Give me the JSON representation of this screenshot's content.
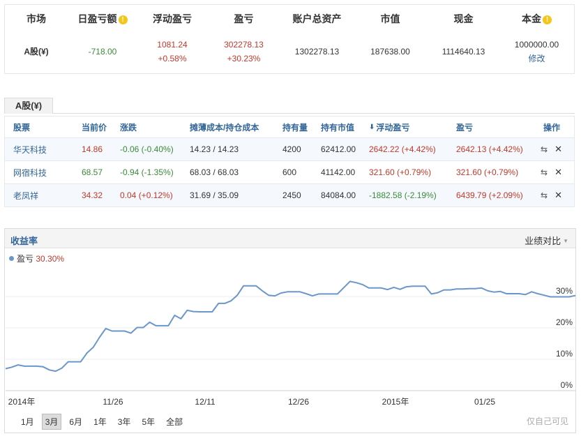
{
  "summary": {
    "headers": {
      "market": "市场",
      "daily_pl": "日盈亏额",
      "floating_pl": "浮动盈亏",
      "pl": "盈亏",
      "total_assets": "账户总资产",
      "market_value": "市值",
      "cash": "现金",
      "principal": "本金"
    },
    "row": {
      "market": "A股(¥)",
      "daily_pl": "-718.00",
      "floating_pl": "1081.24",
      "floating_pl_pct": "+0.58%",
      "pl": "302278.13",
      "pl_pct": "+30.23%",
      "total_assets": "1302278.13",
      "market_value": "187638.00",
      "cash": "1114640.13",
      "principal": "1000000.00",
      "edit_label": "修改"
    }
  },
  "holdings": {
    "tab_label": "A股(¥)",
    "columns": {
      "stock": "股票",
      "price": "当前价",
      "change": "涨跌",
      "cost": "摊薄成本/持仓成本",
      "qty": "持有量",
      "value": "持有市值",
      "floating_pl": "浮动盈亏",
      "pl": "盈亏",
      "actions": "操作"
    },
    "rows": [
      {
        "name": "华天科技",
        "price": "14.86",
        "change": "-0.06 (-0.40%)",
        "cost": "14.23 / 14.23",
        "qty": "4200",
        "value": "62412.00",
        "floating_pl": "2642.22 (+4.42%)",
        "pl": "2642.13 (+4.42%)"
      },
      {
        "name": "网宿科技",
        "price": "68.57",
        "change": "-0.94 (-1.35%)",
        "cost": "68.03 / 68.03",
        "qty": "600",
        "value": "41142.00",
        "floating_pl": "321.60 (+0.79%)",
        "pl": "321.60 (+0.79%)"
      },
      {
        "name": "老凤祥",
        "price": "34.32",
        "change": "0.04 (+0.12%)",
        "cost": "31.69 / 35.09",
        "qty": "2450",
        "value": "84084.00",
        "floating_pl": "-1882.58 (-2.19%)",
        "pl": "6439.79 (+2.09%)"
      }
    ]
  },
  "chart": {
    "title": "收益率",
    "compare_label": "业绩对比",
    "legend_name": "盈亏",
    "legend_value": "30.30%",
    "range_buttons": [
      "1月",
      "3月",
      "6月",
      "1年",
      "3年",
      "5年",
      "全部"
    ],
    "active_range": "3月",
    "private_note": "仅自己可见",
    "line_color": "#6b96c9"
  },
  "chart_data": {
    "type": "line",
    "y_ticks": [
      "0%",
      "10%",
      "20%",
      "30%"
    ],
    "ylim": [
      0,
      40
    ],
    "x_ticks": [
      "2014年",
      "11/26",
      "12/11",
      "12/26",
      "2015年",
      "01/25"
    ],
    "series": [
      {
        "name": "盈亏",
        "values": [
          7,
          7.5,
          8.2,
          7.8,
          7.8,
          7.8,
          7.6,
          6.6,
          6.2,
          7.2,
          9.2,
          9.2,
          9.2,
          12,
          13.8,
          17,
          19.8,
          19,
          19,
          19,
          18.3,
          20.1,
          20.1,
          21.8,
          20.7,
          20.7,
          20.7,
          24,
          22.9,
          25.6,
          25.2,
          25.1,
          25.1,
          25.1,
          27.8,
          27.8,
          28.6,
          30.4,
          33.4,
          33.4,
          33.4,
          31.8,
          30.4,
          30.2,
          31.1,
          31.5,
          31.5,
          31.5,
          30.9,
          30.2,
          30.8,
          30.8,
          30.8,
          30.8,
          32.8,
          34.8,
          34.4,
          33.8,
          32.7,
          32.7,
          32.7,
          32.2,
          32.9,
          32.3,
          33.1,
          33.3,
          33.3,
          33.3,
          30.8,
          31.2,
          32.1,
          32.1,
          32.4,
          32.4,
          32.5,
          32.5,
          32.7,
          31.8,
          31.4,
          31.6,
          30.9,
          30.9,
          30.9,
          30.6,
          31.5,
          30.9,
          30.4,
          29.9,
          29.9,
          29.9,
          29.9,
          30.3
        ]
      }
    ]
  }
}
